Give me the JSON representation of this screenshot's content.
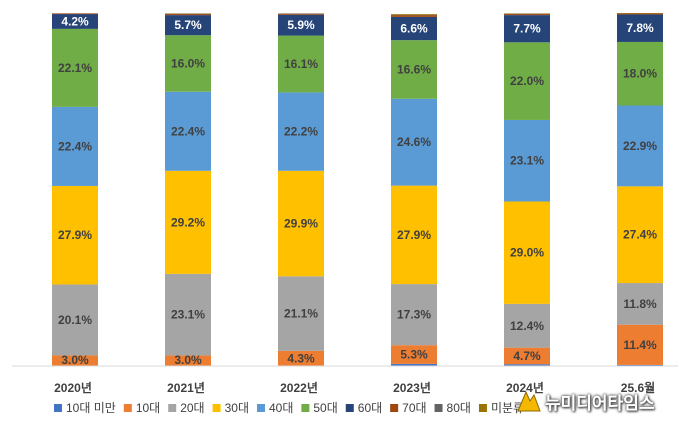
{
  "chart_data": {
    "type": "bar",
    "stacked": true,
    "percent": true,
    "categories": [
      "2020년",
      "2021년",
      "2022년",
      "2023년",
      "2024년",
      "25.6월"
    ],
    "series": [
      {
        "name": "10대 미만",
        "color": "#4472c4",
        "values": [
          0.0,
          0.0,
          0.0,
          0.6,
          0.5,
          0.3
        ],
        "labels": [
          "",
          "",
          "",
          "",
          "",
          ""
        ]
      },
      {
        "name": "10대",
        "color": "#ed7d31",
        "values": [
          3.0,
          3.0,
          4.3,
          5.3,
          4.7,
          11.4
        ],
        "labels": [
          "3.0%",
          "3.0%",
          "4.3%",
          "5.3%",
          "4.7%",
          "11.4%"
        ]
      },
      {
        "name": "20대",
        "color": "#a5a5a5",
        "values": [
          20.1,
          23.1,
          21.1,
          17.3,
          12.4,
          11.8
        ],
        "labels": [
          "20.1%",
          "23.1%",
          "21.1%",
          "17.3%",
          "12.4%",
          "11.8%"
        ]
      },
      {
        "name": "30대",
        "color": "#ffc000",
        "values": [
          27.9,
          29.2,
          29.9,
          27.9,
          29.0,
          27.4
        ],
        "labels": [
          "27.9%",
          "29.2%",
          "29.9%",
          "27.9%",
          "29.0%",
          "27.4%"
        ]
      },
      {
        "name": "40대",
        "color": "#5b9bd5",
        "values": [
          22.4,
          22.4,
          22.2,
          24.6,
          23.1,
          22.9
        ],
        "labels": [
          "22.4%",
          "22.4%",
          "22.2%",
          "24.6%",
          "23.1%",
          "22.9%"
        ]
      },
      {
        "name": "50대",
        "color": "#70ad47",
        "values": [
          22.1,
          16.0,
          16.1,
          16.6,
          22.0,
          18.0
        ],
        "labels": [
          "22.1%",
          "16.0%",
          "16.1%",
          "16.6%",
          "22.0%",
          "18.0%"
        ]
      },
      {
        "name": "60대",
        "color": "#264478",
        "values": [
          4.2,
          5.7,
          5.9,
          6.6,
          7.7,
          7.8
        ],
        "labels": [
          "4.2%",
          "5.7%",
          "5.9%",
          "6.6%",
          "7.7%",
          "7.8%"
        ]
      },
      {
        "name": "70대",
        "color": "#9e480e",
        "values": [
          0.2,
          0.3,
          0.3,
          0.5,
          0.3,
          0.3
        ],
        "labels": [
          "",
          "",
          "",
          "",
          "",
          ""
        ]
      },
      {
        "name": "80대",
        "color": "#636363",
        "values": [
          0.0,
          0.1,
          0.1,
          0.1,
          0.1,
          0.0
        ],
        "labels": [
          "",
          "",
          "",
          "",
          "",
          ""
        ]
      },
      {
        "name": "미분류",
        "color": "#997300",
        "values": [
          0.0,
          0.1,
          0.0,
          0.2,
          0.1,
          0.1
        ],
        "labels": [
          "",
          "",
          "",
          "",
          "",
          ""
        ]
      }
    ],
    "ylim": [
      0,
      100
    ],
    "grid": false,
    "legend_position": "bottom"
  },
  "watermark": "뉴미디어타임스"
}
